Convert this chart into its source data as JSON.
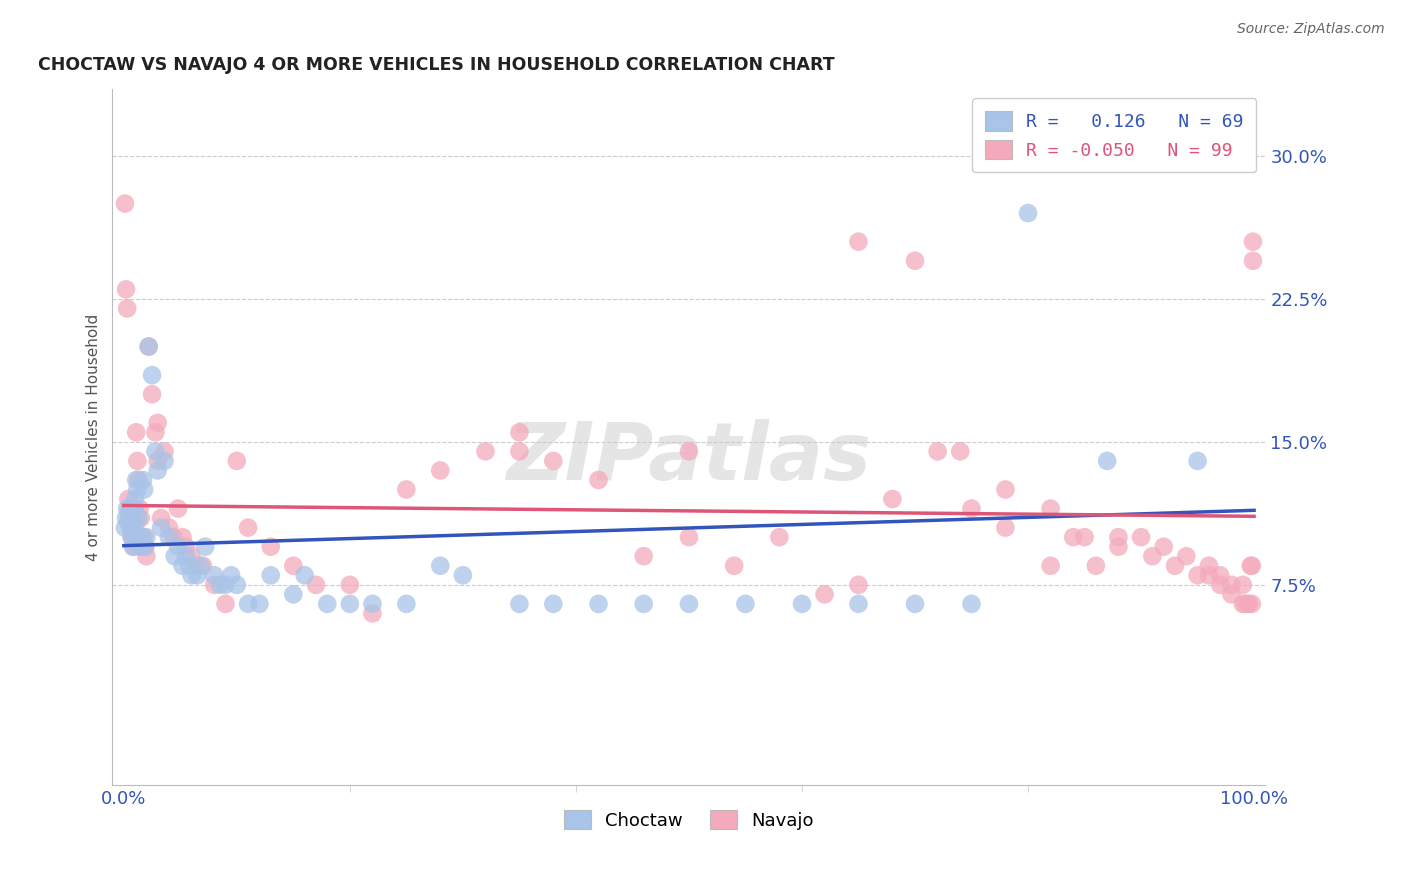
{
  "title": "CHOCTAW VS NAVAJO 4 OR MORE VEHICLES IN HOUSEHOLD CORRELATION CHART",
  "source": "Source: ZipAtlas.com",
  "ylabel": "4 or more Vehicles in Household",
  "ytick_values": [
    0.075,
    0.15,
    0.225,
    0.3
  ],
  "ytick_labels": [
    "7.5%",
    "15.0%",
    "22.5%",
    "30.0%"
  ],
  "xlim": [
    -0.01,
    1.01
  ],
  "ylim": [
    -0.03,
    0.335
  ],
  "choctaw_R": 0.126,
  "choctaw_N": 69,
  "navajo_R": -0.05,
  "navajo_N": 99,
  "choctaw_color": "#A8C4E8",
  "navajo_color": "#F4AABC",
  "choctaw_line_color": "#3355BB",
  "navajo_line_color": "#DD5577",
  "background_color": "#FFFFFF",
  "watermark_text": "ZIPatlas",
  "choctaw_x": [
    0.001,
    0.002,
    0.003,
    0.004,
    0.005,
    0.006,
    0.006,
    0.007,
    0.008,
    0.008,
    0.009,
    0.009,
    0.01,
    0.01,
    0.011,
    0.012,
    0.013,
    0.014,
    0.015,
    0.016,
    0.017,
    0.018,
    0.019,
    0.02,
    0.022,
    0.025,
    0.028,
    0.03,
    0.033,
    0.036,
    0.04,
    0.045,
    0.048,
    0.052,
    0.055,
    0.058,
    0.06,
    0.065,
    0.068,
    0.072,
    0.08,
    0.085,
    0.09,
    0.095,
    0.1,
    0.11,
    0.12,
    0.13,
    0.15,
    0.16,
    0.18,
    0.2,
    0.22,
    0.25,
    0.28,
    0.3,
    0.35,
    0.38,
    0.42,
    0.46,
    0.5,
    0.55,
    0.6,
    0.65,
    0.7,
    0.75,
    0.8,
    0.87,
    0.95
  ],
  "choctaw_y": [
    0.105,
    0.11,
    0.115,
    0.108,
    0.112,
    0.115,
    0.108,
    0.1,
    0.095,
    0.105,
    0.115,
    0.108,
    0.12,
    0.115,
    0.13,
    0.125,
    0.11,
    0.1,
    0.095,
    0.1,
    0.13,
    0.125,
    0.095,
    0.1,
    0.2,
    0.185,
    0.145,
    0.135,
    0.105,
    0.14,
    0.1,
    0.09,
    0.095,
    0.085,
    0.09,
    0.085,
    0.08,
    0.08,
    0.085,
    0.095,
    0.08,
    0.075,
    0.075,
    0.08,
    0.075,
    0.065,
    0.065,
    0.08,
    0.07,
    0.08,
    0.065,
    0.065,
    0.065,
    0.065,
    0.085,
    0.08,
    0.065,
    0.065,
    0.065,
    0.065,
    0.065,
    0.065,
    0.065,
    0.065,
    0.065,
    0.065,
    0.27,
    0.14,
    0.14
  ],
  "navajo_x": [
    0.001,
    0.002,
    0.003,
    0.004,
    0.005,
    0.005,
    0.006,
    0.007,
    0.007,
    0.008,
    0.009,
    0.009,
    0.01,
    0.01,
    0.011,
    0.012,
    0.013,
    0.014,
    0.015,
    0.016,
    0.017,
    0.018,
    0.019,
    0.02,
    0.022,
    0.025,
    0.028,
    0.03,
    0.033,
    0.036,
    0.04,
    0.044,
    0.048,
    0.052,
    0.055,
    0.06,
    0.065,
    0.07,
    0.08,
    0.09,
    0.1,
    0.11,
    0.13,
    0.15,
    0.17,
    0.2,
    0.22,
    0.25,
    0.28,
    0.32,
    0.35,
    0.38,
    0.42,
    0.46,
    0.5,
    0.54,
    0.58,
    0.62,
    0.65,
    0.68,
    0.72,
    0.75,
    0.78,
    0.82,
    0.84,
    0.86,
    0.88,
    0.9,
    0.92,
    0.94,
    0.96,
    0.97,
    0.98,
    0.99,
    0.995,
    0.998,
    0.999,
    0.999,
    0.998,
    0.997,
    0.65,
    0.7,
    0.74,
    0.78,
    0.82,
    0.85,
    0.88,
    0.91,
    0.93,
    0.95,
    0.96,
    0.97,
    0.98,
    0.99,
    0.992,
    0.995,
    0.03,
    0.35,
    0.5
  ],
  "navajo_y": [
    0.275,
    0.23,
    0.22,
    0.12,
    0.115,
    0.11,
    0.105,
    0.1,
    0.105,
    0.1,
    0.115,
    0.095,
    0.105,
    0.1,
    0.155,
    0.14,
    0.13,
    0.115,
    0.11,
    0.1,
    0.095,
    0.1,
    0.095,
    0.09,
    0.2,
    0.175,
    0.155,
    0.14,
    0.11,
    0.145,
    0.105,
    0.1,
    0.115,
    0.1,
    0.095,
    0.09,
    0.085,
    0.085,
    0.075,
    0.065,
    0.14,
    0.105,
    0.095,
    0.085,
    0.075,
    0.075,
    0.06,
    0.125,
    0.135,
    0.145,
    0.145,
    0.14,
    0.13,
    0.09,
    0.1,
    0.085,
    0.1,
    0.07,
    0.075,
    0.12,
    0.145,
    0.115,
    0.105,
    0.085,
    0.1,
    0.085,
    0.1,
    0.1,
    0.095,
    0.09,
    0.085,
    0.08,
    0.075,
    0.075,
    0.065,
    0.065,
    0.255,
    0.245,
    0.085,
    0.085,
    0.255,
    0.245,
    0.145,
    0.125,
    0.115,
    0.1,
    0.095,
    0.09,
    0.085,
    0.08,
    0.08,
    0.075,
    0.07,
    0.065,
    0.065,
    0.065,
    0.16,
    0.155,
    0.145
  ]
}
